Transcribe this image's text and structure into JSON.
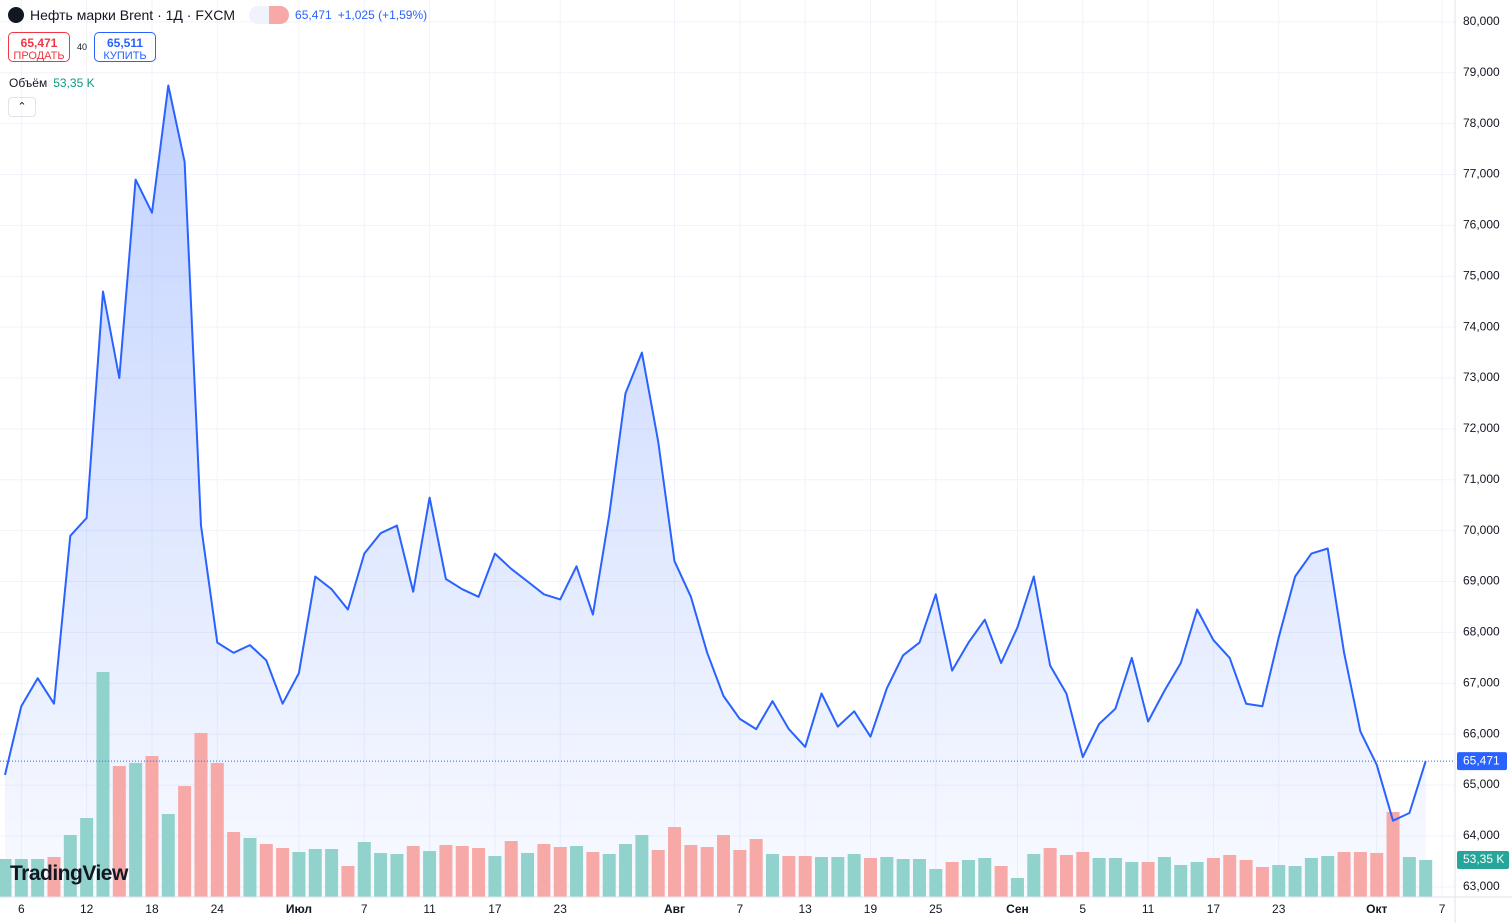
{
  "chart_data": {
    "type": "line",
    "title": "Нефть марки Brent · 1Д · FXCM",
    "price": "65,471",
    "change": "+1,025 (+1,59%)",
    "sell": {
      "price": "65,471",
      "label": "ПРОДАТЬ"
    },
    "spread": "40",
    "buy": {
      "price": "65,511",
      "label": "КУПИТЬ"
    },
    "volume_title": "Объём",
    "volume_last": "53,35 K",
    "logo": "TradingView",
    "color": "#2962ff",
    "last": {
      "value": 65.471,
      "label": "65,471"
    },
    "ylim": [
      62.8,
      80.43
    ],
    "yticks": [
      {
        "value": 63,
        "label": "63,000"
      },
      {
        "value": 64,
        "label": "64,000"
      },
      {
        "value": 65,
        "label": "65,000"
      },
      {
        "value": 66,
        "label": "66,000"
      },
      {
        "value": 67,
        "label": "67,000"
      },
      {
        "value": 68,
        "label": "68,000"
      },
      {
        "value": 69,
        "label": "69,000"
      },
      {
        "value": 70,
        "label": "70,000"
      },
      {
        "value": 71,
        "label": "71,000"
      },
      {
        "value": 72,
        "label": "72,000"
      },
      {
        "value": 73,
        "label": "73,000"
      },
      {
        "value": 74,
        "label": "74,000"
      },
      {
        "value": 75,
        "label": "75,000"
      },
      {
        "value": 76,
        "label": "76,000"
      },
      {
        "value": 77,
        "label": "77,000"
      },
      {
        "value": 78,
        "label": "78,000"
      },
      {
        "value": 79,
        "label": "79,000"
      },
      {
        "value": 80,
        "label": "80,000"
      }
    ],
    "grid": true,
    "categories": [
      null,
      "6",
      null,
      null,
      null,
      "12",
      null,
      null,
      null,
      "18",
      null,
      null,
      null,
      "24",
      null,
      null,
      null,
      null,
      "Июл",
      null,
      null,
      null,
      "7",
      null,
      null,
      null,
      "11",
      null,
      null,
      null,
      "17",
      null,
      null,
      null,
      "23",
      null,
      null,
      null,
      null,
      null,
      null,
      "Авг",
      null,
      null,
      null,
      "7",
      null,
      null,
      null,
      "13",
      null,
      null,
      null,
      "19",
      null,
      null,
      null,
      "25",
      null,
      null,
      null,
      null,
      "Сен",
      null,
      null,
      null,
      "5",
      null,
      null,
      null,
      "11",
      null,
      null,
      null,
      "17",
      null,
      null,
      null,
      "23",
      null,
      null,
      null,
      null,
      null,
      "Окт",
      null,
      null,
      null,
      "7"
    ],
    "values": [
      65.2,
      66.55,
      67.1,
      66.6,
      69.9,
      70.25,
      74.7,
      73.0,
      76.9,
      76.25,
      78.75,
      77.25,
      70.1,
      67.8,
      67.6,
      67.75,
      67.45,
      66.6,
      67.2,
      69.1,
      68.85,
      68.45,
      69.55,
      69.95,
      70.1,
      68.8,
      70.65,
      69.05,
      68.85,
      68.7,
      69.55,
      69.25,
      69.0,
      68.75,
      68.65,
      69.3,
      68.35,
      70.3,
      72.7,
      73.5,
      71.75,
      69.4,
      68.7,
      67.6,
      66.75,
      66.3,
      66.1,
      66.65,
      66.1,
      65.75,
      66.8,
      66.15,
      66.45,
      65.95,
      66.9,
      67.55,
      67.8,
      68.75,
      67.25,
      67.8,
      68.25,
      67.4,
      68.1,
      69.1,
      67.35,
      66.8,
      65.55,
      66.2,
      66.5,
      67.5,
      66.25,
      66.85,
      67.4,
      68.45,
      67.85,
      67.5,
      66.6,
      66.55,
      67.9,
      69.1,
      69.55,
      69.65,
      67.6,
      66.05,
      65.4,
      64.3,
      64.45,
      65.471,
      null
    ],
    "volume": {
      "values": [
        54.7,
        54.7,
        54.7,
        57.6,
        89.3,
        113.8,
        324,
        188.6,
        193,
        203,
        119.5,
        159.8,
        236.2,
        193,
        93.6,
        85,
        76.3,
        70.6,
        64.8,
        69.1,
        69.1,
        44.6,
        79.2,
        63.4,
        61.9,
        73.4,
        66.2,
        74.9,
        73.4,
        70.6,
        59,
        80.6,
        63.4,
        76.3,
        72,
        73.4,
        64.8,
        61.9,
        76.3,
        89.3,
        67.7,
        100.8,
        74.9,
        72,
        89.3,
        67.7,
        83.5,
        61.9,
        59,
        59,
        57.6,
        57.6,
        61.9,
        56.2,
        57.6,
        54.7,
        54.7,
        40.3,
        50.4,
        53.3,
        56.2,
        44.6,
        27.4,
        61.9,
        70.6,
        60.5,
        64.8,
        56.2,
        56.2,
        50.4,
        50.4,
        57.6,
        46.1,
        50.4,
        56.2,
        60.5,
        53.3,
        43.2,
        46.1,
        44.6,
        56.2,
        59,
        64.8,
        64.8,
        63.4,
        122.4,
        57.6,
        53.35,
        null
      ],
      "colors": [
        "#92d2cc",
        "#92d2cc",
        "#92d2cc",
        "#f7a9a7",
        "#92d2cc",
        "#92d2cc",
        "#92d2cc",
        "#f7a9a7",
        "#92d2cc",
        "#f7a9a7",
        "#92d2cc",
        "#f7a9a7",
        "#f7a9a7",
        "#f7a9a7",
        "#f7a9a7",
        "#92d2cc",
        "#f7a9a7",
        "#f7a9a7",
        "#92d2cc",
        "#92d2cc",
        "#92d2cc",
        "#f7a9a7",
        "#92d2cc",
        "#92d2cc",
        "#92d2cc",
        "#f7a9a7",
        "#92d2cc",
        "#f7a9a7",
        "#f7a9a7",
        "#f7a9a7",
        "#92d2cc",
        "#f7a9a7",
        "#92d2cc",
        "#f7a9a7",
        "#f7a9a7",
        "#92d2cc",
        "#f7a9a7",
        "#92d2cc",
        "#92d2cc",
        "#92d2cc",
        "#f7a9a7",
        "#f7a9a7",
        "#f7a9a7",
        "#f7a9a7",
        "#f7a9a7",
        "#f7a9a7",
        "#f7a9a7",
        "#92d2cc",
        "#f7a9a7",
        "#f7a9a7",
        "#92d2cc",
        "#92d2cc",
        "#92d2cc",
        "#f7a9a7",
        "#92d2cc",
        "#92d2cc",
        "#92d2cc",
        "#92d2cc",
        "#f7a9a7",
        "#92d2cc",
        "#92d2cc",
        "#f7a9a7",
        "#92d2cc",
        "#92d2cc",
        "#f7a9a7",
        "#f7a9a7",
        "#f7a9a7",
        "#92d2cc",
        "#92d2cc",
        "#92d2cc",
        "#f7a9a7",
        "#92d2cc",
        "#92d2cc",
        "#92d2cc",
        "#f7a9a7",
        "#f7a9a7",
        "#f7a9a7",
        "#f7a9a7",
        "#92d2cc",
        "#92d2cc",
        "#92d2cc",
        "#92d2cc",
        "#f7a9a7",
        "#f7a9a7",
        "#f7a9a7",
        "#f7a9a7",
        "#92d2cc",
        "#92d2cc",
        null
      ]
    }
  }
}
